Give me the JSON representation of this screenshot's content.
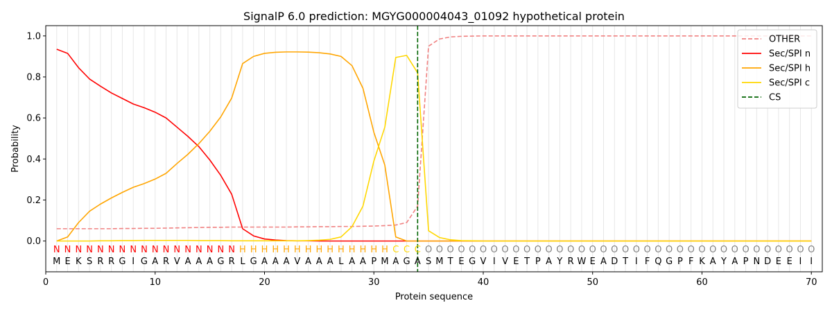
{
  "chart_data": {
    "type": "line",
    "title": "SignalP 6.0 prediction: MGYG000004043_01092 hypothetical protein",
    "xlabel": "Protein sequence",
    "ylabel": "Probability",
    "xlim": [
      0,
      71
    ],
    "ylim": [
      -0.15,
      1.05
    ],
    "xticks": [
      0,
      10,
      20,
      30,
      40,
      50,
      60,
      70
    ],
    "yticks": [
      0.0,
      0.2,
      0.4,
      0.6,
      0.8,
      1.0
    ],
    "grid": "vertical lines at every residue",
    "legend_placement": "top-right",
    "x": [
      1,
      2,
      3,
      4,
      5,
      6,
      7,
      8,
      9,
      10,
      11,
      12,
      13,
      14,
      15,
      16,
      17,
      18,
      19,
      20,
      21,
      22,
      23,
      24,
      25,
      26,
      27,
      28,
      29,
      30,
      31,
      32,
      33,
      34,
      35,
      36,
      37,
      38,
      39,
      40,
      41,
      42,
      43,
      44,
      45,
      46,
      47,
      48,
      49,
      50,
      51,
      52,
      53,
      54,
      55,
      56,
      57,
      58,
      59,
      60,
      61,
      62,
      63,
      64,
      65,
      66,
      67,
      68,
      69,
      70
    ],
    "series": [
      {
        "name": "OTHER",
        "color": "#f08080",
        "dash": "dashed",
        "values": [
          0.06,
          0.06,
          0.06,
          0.06,
          0.06,
          0.06,
          0.061,
          0.061,
          0.062,
          0.062,
          0.063,
          0.064,
          0.065,
          0.066,
          0.067,
          0.067,
          0.068,
          0.068,
          0.068,
          0.068,
          0.068,
          0.068,
          0.069,
          0.069,
          0.07,
          0.07,
          0.071,
          0.071,
          0.072,
          0.073,
          0.075,
          0.078,
          0.09,
          0.17,
          0.95,
          0.985,
          0.995,
          0.998,
          0.999,
          1.0,
          1.0,
          1.0,
          1.0,
          1.0,
          1.0,
          1.0,
          1.0,
          1.0,
          1.0,
          1.0,
          1.0,
          1.0,
          1.0,
          1.0,
          1.0,
          1.0,
          1.0,
          1.0,
          1.0,
          1.0,
          1.0,
          1.0,
          1.0,
          1.0,
          1.0,
          1.0,
          1.0,
          1.0,
          1.0,
          1.0
        ]
      },
      {
        "name": "Sec/SPI n",
        "color": "#ff0000",
        "dash": "solid",
        "values": [
          0.935,
          0.915,
          0.845,
          0.79,
          0.755,
          0.722,
          0.695,
          0.668,
          0.65,
          0.628,
          0.6,
          0.555,
          0.51,
          0.46,
          0.395,
          0.32,
          0.228,
          0.06,
          0.025,
          0.01,
          0.005,
          0.002,
          0.001,
          0.001,
          0.0,
          0.0,
          0.0,
          0.0,
          0.0,
          0.0,
          0.0,
          0.0,
          0.0,
          0.0,
          0.0,
          0.0,
          0.0,
          0.0,
          0.0,
          0.0,
          0.0,
          0.0,
          0.0,
          0.0,
          0.0,
          0.0,
          0.0,
          0.0,
          0.0,
          0.0,
          0.0,
          0.0,
          0.0,
          0.0,
          0.0,
          0.0,
          0.0,
          0.0,
          0.0,
          0.0,
          0.0,
          0.0,
          0.0,
          0.0,
          0.0,
          0.0,
          0.0,
          0.0,
          0.0,
          0.0
        ]
      },
      {
        "name": "Sec/SPI h",
        "color": "#ffa500",
        "dash": "solid",
        "values": [
          0.0,
          0.02,
          0.09,
          0.145,
          0.18,
          0.21,
          0.237,
          0.262,
          0.28,
          0.302,
          0.33,
          0.378,
          0.423,
          0.475,
          0.535,
          0.605,
          0.697,
          0.865,
          0.9,
          0.915,
          0.92,
          0.922,
          0.922,
          0.921,
          0.918,
          0.912,
          0.9,
          0.855,
          0.745,
          0.53,
          0.37,
          0.02,
          0.0,
          0.0,
          0.0,
          0.0,
          0.0,
          0.0,
          0.0,
          0.0,
          0.0,
          0.0,
          0.0,
          0.0,
          0.0,
          0.0,
          0.0,
          0.0,
          0.0,
          0.0,
          0.0,
          0.0,
          0.0,
          0.0,
          0.0,
          0.0,
          0.0,
          0.0,
          0.0,
          0.0,
          0.0,
          0.0,
          0.0,
          0.0,
          0.0,
          0.0,
          0.0,
          0.0,
          0.0,
          0.0
        ]
      },
      {
        "name": "Sec/SPI c",
        "color": "#ffd700",
        "dash": "solid",
        "values": [
          0.0,
          0.0,
          0.0,
          0.0,
          0.001,
          0.001,
          0.002,
          0.002,
          0.003,
          0.003,
          0.003,
          0.003,
          0.003,
          0.002,
          0.002,
          0.002,
          0.001,
          0.001,
          0.001,
          0.001,
          0.001,
          0.001,
          0.001,
          0.002,
          0.004,
          0.008,
          0.02,
          0.07,
          0.17,
          0.39,
          0.555,
          0.895,
          0.905,
          0.82,
          0.05,
          0.017,
          0.006,
          0.002,
          0.001,
          0.0,
          0.0,
          0.0,
          0.0,
          0.0,
          0.0,
          0.0,
          0.0,
          0.0,
          0.0,
          0.0,
          0.0,
          0.0,
          0.0,
          0.0,
          0.0,
          0.0,
          0.0,
          0.0,
          0.0,
          0.0,
          0.0,
          0.0,
          0.0,
          0.0,
          0.0,
          0.0,
          0.0,
          0.0,
          0.0,
          0.0
        ]
      }
    ],
    "cs": {
      "name": "CS",
      "x": 34,
      "color": "#006400"
    },
    "sequence": [
      "M",
      "E",
      "K",
      "S",
      "R",
      "R",
      "G",
      "I",
      "G",
      "A",
      "R",
      "V",
      "A",
      "A",
      "A",
      "G",
      "R",
      "L",
      "G",
      "A",
      "A",
      "A",
      "V",
      "A",
      "A",
      "A",
      "L",
      "A",
      "A",
      "P",
      "M",
      "A",
      "G",
      "A",
      "S",
      "M",
      "T",
      "E",
      "G",
      "V",
      "I",
      "V",
      "E",
      "T",
      "P",
      "A",
      "Y",
      "R",
      "W",
      "E",
      "A",
      "D",
      "T",
      "I",
      "F",
      "Q",
      "G",
      "P",
      "F",
      "K",
      "A",
      "Y",
      "A",
      "P",
      "N",
      "D",
      "E",
      "E",
      "I",
      "I"
    ],
    "labels": [
      "N",
      "N",
      "N",
      "N",
      "N",
      "N",
      "N",
      "N",
      "N",
      "N",
      "N",
      "N",
      "N",
      "N",
      "N",
      "N",
      "N",
      "H",
      "H",
      "H",
      "H",
      "H",
      "H",
      "H",
      "H",
      "H",
      "H",
      "H",
      "H",
      "H",
      "H",
      "C",
      "C",
      "C",
      "O",
      "O",
      "O",
      "O",
      "O",
      "O",
      "O",
      "O",
      "O",
      "O",
      "O",
      "O",
      "O",
      "O",
      "O",
      "O",
      "O",
      "O",
      "O",
      "O",
      "O",
      "O",
      "O",
      "O",
      "O",
      "O",
      "O",
      "O",
      "O",
      "O",
      "O",
      "O",
      "O",
      "O",
      "O",
      "O"
    ],
    "label_colors": {
      "N": "#ff0000",
      "H": "#ffa500",
      "C": "#ffd700",
      "O": "#808080"
    }
  }
}
